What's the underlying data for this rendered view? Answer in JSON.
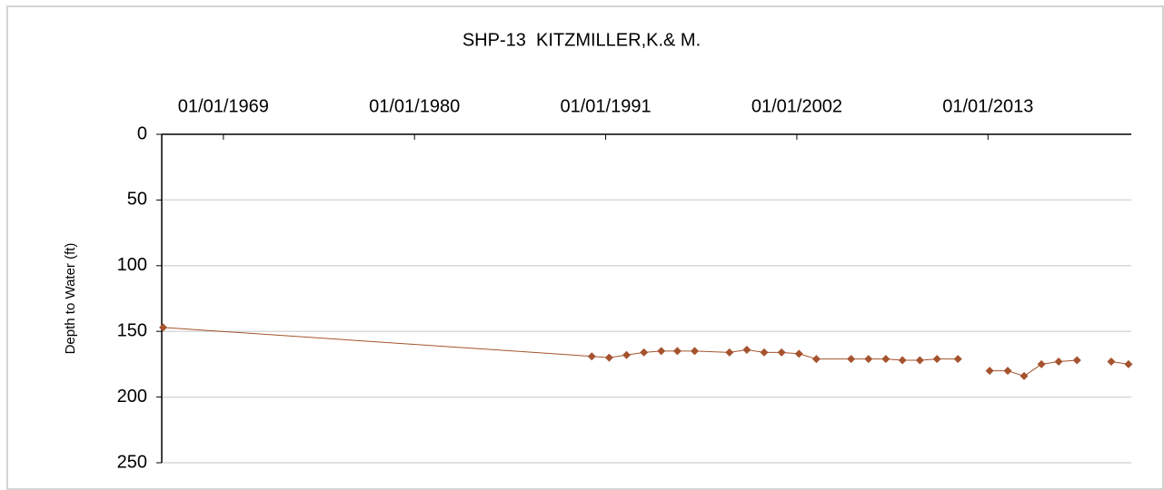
{
  "chart_data": {
    "type": "line",
    "title": "SHP-13  KITZMILLER,K.& M.",
    "y_label": "Depth to Water (ft)",
    "x": [
      "1965-07-15",
      "1990-03-15",
      "1991-03-15",
      "1992-03-15",
      "1993-03-15",
      "1994-03-15",
      "1995-02-15",
      "1996-02-15",
      "1998-02-15",
      "1999-02-15",
      "2000-02-15",
      "2001-02-15",
      "2002-02-15",
      "2003-02-15",
      "2005-02-15",
      "2006-02-15",
      "2007-02-15",
      "2008-01-30",
      "2009-01-30",
      "2010-01-25",
      "2011-04-10",
      "2012-06-01",
      "2013-02-05",
      "2014-02-20",
      "2015-01-30",
      "2016-01-30",
      "2017-01-25",
      "2018-02-15",
      "2019-06-01",
      "2020-02-05",
      "2021-02-01"
    ],
    "series": [
      {
        "name": "Depth to Water",
        "color": "#a5532e",
        "values": [
          147,
          169,
          170,
          168,
          166,
          165,
          165,
          165,
          166,
          164,
          166,
          166,
          167,
          171,
          171,
          171,
          171,
          172,
          172,
          171,
          171,
          null,
          180,
          180,
          184,
          175,
          173,
          172,
          null,
          173,
          175
        ]
      }
    ],
    "xlim": [
      "1965-06-15",
      "2021-04-01"
    ],
    "xticks": [
      {
        "value": "1969-01-01",
        "label": "01/01/1969"
      },
      {
        "value": "1980-01-01",
        "label": "01/01/1980"
      },
      {
        "value": "1991-01-01",
        "label": "01/01/1991"
      },
      {
        "value": "2002-01-01",
        "label": "01/01/2002"
      },
      {
        "value": "2013-01-01",
        "label": "01/01/2013"
      }
    ],
    "ylim": [
      0,
      250
    ],
    "yticks": [
      0,
      50,
      100,
      150,
      200,
      250
    ],
    "y_inverted": true,
    "grid": true,
    "x_axis_position": "top"
  }
}
